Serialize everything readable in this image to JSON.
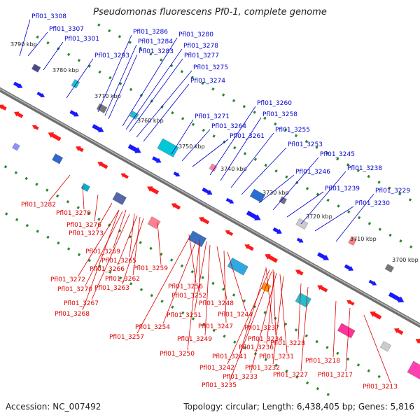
{
  "title": "Pseudomonas fluorescens Pf0-1, complete genome",
  "footer": {
    "accession": "Accession: NC_007492",
    "summary": "Topology: circular; Length: 6,438,405 bp; Genes: 5,816"
  },
  "colors": {
    "forward_label": "#0000cc",
    "reverse_label": "#dd0000",
    "forward_arrow": "#1a1aff",
    "reverse_arrow": "#ff1a1a",
    "backbone": "#888888",
    "tick": "#2a8a2a"
  },
  "ticks": [
    "3790 kbp",
    "3780 kbp",
    "3770 kbp",
    "3760 kbp",
    "3750 kbp",
    "3740 kbp",
    "3730 kbp",
    "3720 kbp",
    "3710 kbp",
    "3700 kbp"
  ],
  "forward_genes": [
    "Pfl01_3308",
    "Pfl01_3307",
    "Pfl01_3301",
    "Pfl01_3293",
    "Pfl01_3286",
    "Pfl01_3284",
    "Pfl01_3283",
    "Pfl01_3280",
    "Pfl01_3278",
    "Pfl01_3277",
    "Pfl01_3275",
    "Pfl01_3274",
    "Pfl01_3271",
    "Pfl01_3264",
    "Pfl01_3261",
    "Pfl01_3260",
    "Pfl01_3258",
    "Pfl01_3255",
    "Pfl01_3253",
    "Pfl01_3246",
    "Pfl01_3245",
    "Pfl01_3239",
    "Pfl01_3238",
    "Pfl01_3230",
    "Pfl01_3229"
  ],
  "reverse_genes": [
    "Pfl01_3282",
    "Pfl01_3279",
    "Pfl01_3276",
    "Pfl01_3273",
    "Pfl01_3269",
    "Pfl01_3265",
    "Pfl01_3266",
    "Pfl01_3259",
    "Pfl01_3272",
    "Pfl01_3262",
    "Pfl01_3270",
    "Pfl01_3263",
    "Pfl01_3267",
    "Pfl01_3268",
    "Pfl01_3256",
    "Pfl01_3252",
    "Pfl01_3251",
    "Pfl01_3248",
    "Pfl01_3244",
    "Pfl01_3247",
    "Pfl01_3254",
    "Pfl01_3257",
    "Pfl01_3249",
    "Pfl01_3250",
    "Pfl01_3237",
    "Pfl01_3234",
    "Pfl01_3236",
    "Pfl01_3231",
    "Pfl01_3241",
    "Pfl01_3232",
    "Pfl01_3242",
    "Pfl01_3233",
    "Pfl01_3235",
    "Pfl01_3228",
    "Pfl01_3227",
    "Pfl01_3218",
    "Pfl01_3217",
    "Pfl01_3213"
  ]
}
